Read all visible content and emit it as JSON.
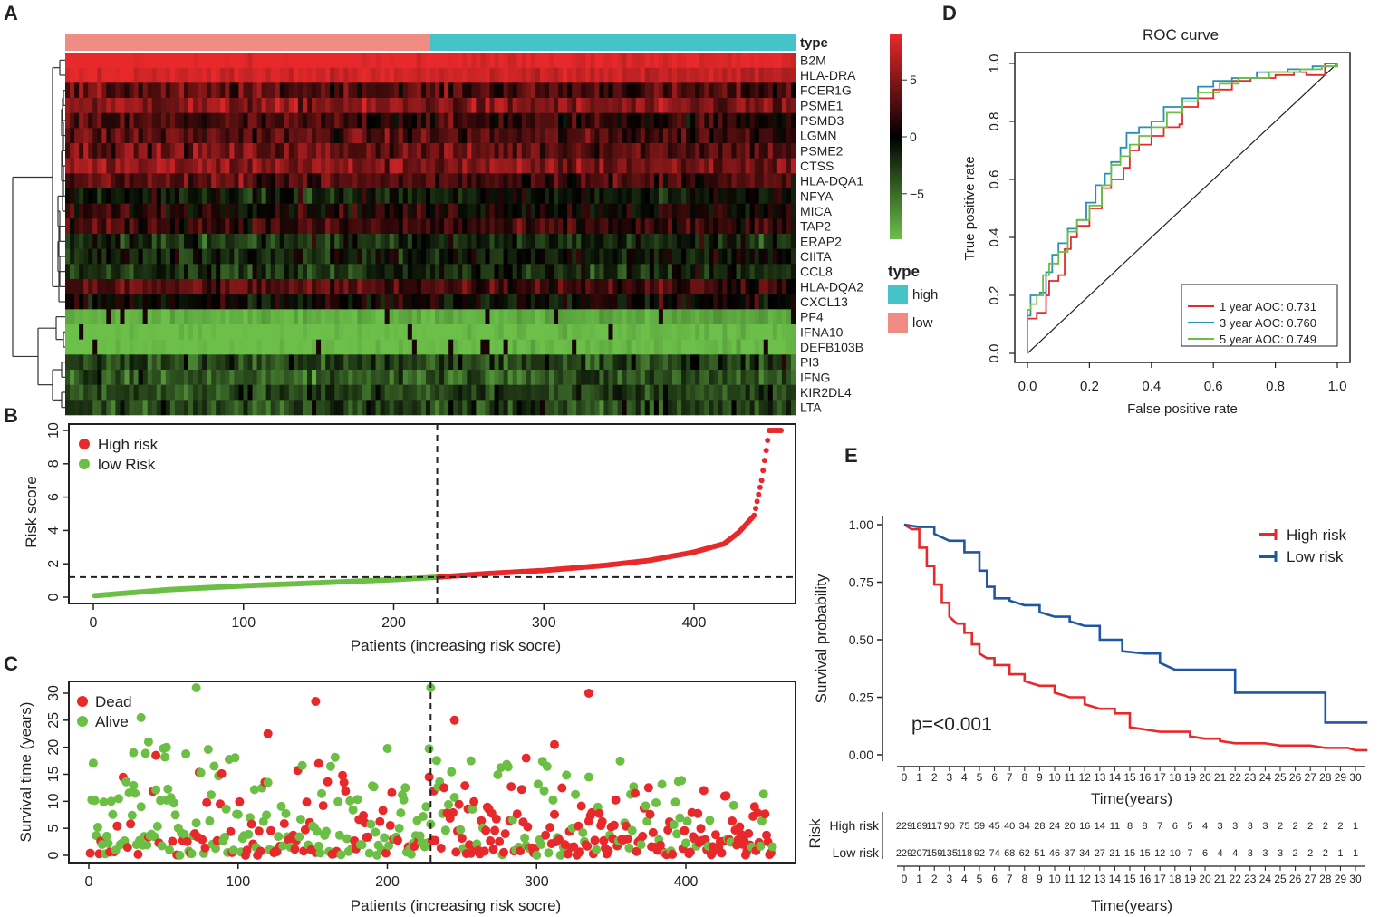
{
  "panel_labels": [
    "A",
    "B",
    "C",
    "D",
    "E"
  ],
  "colors": {
    "high": "#f08c84",
    "low": "#46c3c8",
    "red": "#e8292b",
    "green": "#6cbf45",
    "blue": "#1f56a4",
    "heat_high": "#e8292b",
    "heat_mid": "#000000",
    "heat_low": "#6cc04a"
  },
  "chart_data": [
    {
      "panel": "A",
      "type": "heatmap",
      "annotation_label": "type",
      "genes": [
        "B2M",
        "HLA-DRA",
        "FCER1G",
        "PSME1",
        "PSMD3",
        "LGMN",
        "PSME2",
        "CTSS",
        "HLA-DQA1",
        "NFYA",
        "MICA",
        "TAP2",
        "ERAP2",
        "CIITA",
        "CCL8",
        "HLA-DQA2",
        "CXCL13",
        "PF4",
        "IFNA10",
        "DEFB103B",
        "PI3",
        "IFNG",
        "KIR2DL4",
        "LTA"
      ],
      "gene_mean_level": [
        9,
        8,
        3,
        5,
        2,
        3,
        4,
        5,
        3,
        -1,
        1,
        2,
        -2,
        -1,
        -2,
        3,
        0,
        -8,
        -9,
        -9,
        -3,
        -4,
        -3,
        -3
      ],
      "groups": [
        {
          "name": "low",
          "count": 229
        },
        {
          "name": "high",
          "count": 229
        }
      ],
      "color_scale": {
        "ticks": [
          5,
          0,
          -5
        ],
        "range": [
          -9,
          9
        ]
      },
      "legend": {
        "title": "type",
        "items": [
          "high",
          "low"
        ]
      }
    },
    {
      "panel": "B",
      "type": "scatter",
      "xlabel": "Patients (increasing risk socre)",
      "ylabel": "Risk score",
      "xlim": [
        0,
        460
      ],
      "ylim": [
        0,
        10
      ],
      "xticks": [
        0,
        100,
        200,
        300,
        400
      ],
      "yticks": [
        0,
        2,
        4,
        6,
        8,
        10
      ],
      "n_patients": 458,
      "cutoff_patient": 229,
      "cutoff_score": 1.2,
      "risk_curve": [
        [
          0,
          0.08
        ],
        [
          50,
          0.45
        ],
        [
          100,
          0.68
        ],
        [
          150,
          0.86
        ],
        [
          200,
          1.05
        ],
        [
          229,
          1.2
        ],
        [
          260,
          1.4
        ],
        [
          300,
          1.6
        ],
        [
          340,
          1.9
        ],
        [
          370,
          2.2
        ],
        [
          400,
          2.7
        ],
        [
          420,
          3.2
        ],
        [
          430,
          3.9
        ],
        [
          440,
          4.9
        ],
        [
          445,
          7
        ],
        [
          450,
          10
        ],
        [
          458,
          10
        ]
      ],
      "legend": [
        "High risk",
        "low Risk"
      ]
    },
    {
      "panel": "C",
      "type": "scatter",
      "xlabel": "Patients (increasing risk socre)",
      "ylabel": "Survival time (years)",
      "xlim": [
        0,
        460
      ],
      "ylim": [
        0,
        31
      ],
      "xticks": [
        0,
        100,
        200,
        300,
        400
      ],
      "yticks": [
        0,
        5,
        10,
        15,
        20,
        25,
        30
      ],
      "cutoff_patient": 229,
      "legend": [
        "Dead",
        "Alive"
      ],
      "highlight_points": [
        {
          "x": 72,
          "y": 31,
          "status": "Alive"
        },
        {
          "x": 229,
          "y": 31,
          "status": "Alive"
        },
        {
          "x": 152,
          "y": 28.5,
          "status": "Dead"
        },
        {
          "x": 335,
          "y": 30,
          "status": "Dead"
        },
        {
          "x": 35,
          "y": 25.5,
          "status": "Alive"
        },
        {
          "x": 245,
          "y": 25,
          "status": "Dead"
        },
        {
          "x": 120,
          "y": 22.5,
          "status": "Dead"
        },
        {
          "x": 40,
          "y": 21,
          "status": "Alive"
        },
        {
          "x": 52,
          "y": 20,
          "status": "Alive"
        },
        {
          "x": 312,
          "y": 20.5,
          "status": "Dead"
        },
        {
          "x": 45,
          "y": 18.5,
          "status": "Dead"
        },
        {
          "x": 30,
          "y": 19,
          "status": "Alive"
        },
        {
          "x": 293,
          "y": 18,
          "status": "Dead"
        },
        {
          "x": 154,
          "y": 17,
          "status": "Dead"
        },
        {
          "x": 256,
          "y": 17.5,
          "status": "Alive"
        },
        {
          "x": 228,
          "y": 14.5,
          "status": "Dead"
        },
        {
          "x": 335,
          "y": 14.5,
          "status": "Alive"
        }
      ]
    },
    {
      "panel": "D",
      "type": "line",
      "title": "ROC curve",
      "xlabel": "False positive rate",
      "ylabel": "True positive rate",
      "xlim": [
        0,
        1
      ],
      "ylim": [
        0,
        1
      ],
      "xticks": [
        0.0,
        0.2,
        0.4,
        0.6,
        0.8,
        1.0
      ],
      "yticks": [
        0.0,
        0.2,
        0.4,
        0.6,
        0.8,
        1.0
      ],
      "tick_labels": [
        "0.0",
        "0.2",
        "0.4",
        "0.6",
        "0.8",
        "1.0"
      ],
      "series": [
        {
          "name": "1 year AOC: 0.731",
          "color": "#e8292b",
          "points": [
            [
              0,
              0
            ],
            [
              0,
              0.12
            ],
            [
              0.03,
              0.14
            ],
            [
              0.06,
              0.2
            ],
            [
              0.07,
              0.25
            ],
            [
              0.1,
              0.27
            ],
            [
              0.12,
              0.36
            ],
            [
              0.14,
              0.4
            ],
            [
              0.16,
              0.44
            ],
            [
              0.2,
              0.5
            ],
            [
              0.24,
              0.57
            ],
            [
              0.27,
              0.6
            ],
            [
              0.31,
              0.64
            ],
            [
              0.33,
              0.7
            ],
            [
              0.36,
              0.72
            ],
            [
              0.4,
              0.75
            ],
            [
              0.44,
              0.78
            ],
            [
              0.49,
              0.79
            ],
            [
              0.5,
              0.85
            ],
            [
              0.55,
              0.88
            ],
            [
              0.6,
              0.91
            ],
            [
              0.66,
              0.94
            ],
            [
              0.72,
              0.95
            ],
            [
              0.8,
              0.96
            ],
            [
              0.86,
              0.97
            ],
            [
              0.9,
              0.96
            ],
            [
              0.96,
              1
            ],
            [
              1,
              1
            ]
          ]
        },
        {
          "name": "3 year AOC: 0.760",
          "color": "#2a8fb6",
          "points": [
            [
              0,
              0
            ],
            [
              0,
              0.13
            ],
            [
              0.01,
              0.2
            ],
            [
              0.04,
              0.21
            ],
            [
              0.06,
              0.28
            ],
            [
              0.08,
              0.34
            ],
            [
              0.1,
              0.38
            ],
            [
              0.13,
              0.43
            ],
            [
              0.16,
              0.46
            ],
            [
              0.19,
              0.52
            ],
            [
              0.22,
              0.58
            ],
            [
              0.25,
              0.62
            ],
            [
              0.27,
              0.66
            ],
            [
              0.3,
              0.71
            ],
            [
              0.32,
              0.76
            ],
            [
              0.36,
              0.78
            ],
            [
              0.4,
              0.8
            ],
            [
              0.44,
              0.85
            ],
            [
              0.5,
              0.88
            ],
            [
              0.55,
              0.92
            ],
            [
              0.6,
              0.94
            ],
            [
              0.66,
              0.95
            ],
            [
              0.74,
              0.97
            ],
            [
              0.84,
              0.98
            ],
            [
              0.92,
              0.99
            ],
            [
              1,
              1
            ]
          ]
        },
        {
          "name": "5 year AOC: 0.749",
          "color": "#6cbf45",
          "points": [
            [
              0,
              0
            ],
            [
              0,
              0.15
            ],
            [
              0.01,
              0.17
            ],
            [
              0.03,
              0.2
            ],
            [
              0.05,
              0.27
            ],
            [
              0.07,
              0.31
            ],
            [
              0.1,
              0.35
            ],
            [
              0.13,
              0.42
            ],
            [
              0.16,
              0.46
            ],
            [
              0.2,
              0.51
            ],
            [
              0.24,
              0.58
            ],
            [
              0.27,
              0.65
            ],
            [
              0.3,
              0.68
            ],
            [
              0.33,
              0.72
            ],
            [
              0.36,
              0.75
            ],
            [
              0.4,
              0.78
            ],
            [
              0.45,
              0.83
            ],
            [
              0.5,
              0.87
            ],
            [
              0.55,
              0.9
            ],
            [
              0.62,
              0.93
            ],
            [
              0.68,
              0.95
            ],
            [
              0.78,
              0.97
            ],
            [
              0.88,
              0.98
            ],
            [
              0.95,
              0.99
            ],
            [
              1,
              1
            ]
          ]
        }
      ]
    },
    {
      "panel": "E",
      "type": "line",
      "xlabel": "Time(years)",
      "ylabel": "Survival probability",
      "xlim": [
        0,
        31
      ],
      "ylim": [
        0,
        1
      ],
      "yticks": [
        "0.00",
        "0.25",
        "0.50",
        "0.75",
        "1.00"
      ],
      "ytick_values": [
        0,
        0.25,
        0.5,
        0.75,
        1
      ],
      "xticks": [
        0,
        1,
        2,
        3,
        4,
        5,
        6,
        7,
        8,
        9,
        10,
        11,
        12,
        13,
        14,
        15,
        16,
        17,
        18,
        19,
        20,
        21,
        22,
        23,
        24,
        25,
        26,
        27,
        28,
        29,
        30
      ],
      "pvalue": "p=<0.001",
      "series": [
        {
          "name": "High risk",
          "color": "#e8292b",
          "points": [
            [
              0,
              1
            ],
            [
              0.5,
              0.98
            ],
            [
              1,
              0.9
            ],
            [
              1.5,
              0.82
            ],
            [
              2,
              0.74
            ],
            [
              2.5,
              0.66
            ],
            [
              3,
              0.6
            ],
            [
              3.5,
              0.57
            ],
            [
              4,
              0.53
            ],
            [
              4.5,
              0.48
            ],
            [
              5,
              0.44
            ],
            [
              5.5,
              0.42
            ],
            [
              6,
              0.39
            ],
            [
              7,
              0.35
            ],
            [
              8,
              0.32
            ],
            [
              9,
              0.3
            ],
            [
              10,
              0.27
            ],
            [
              11,
              0.25
            ],
            [
              12,
              0.22
            ],
            [
              13,
              0.2
            ],
            [
              14,
              0.18
            ],
            [
              14.5,
              0.18
            ],
            [
              15,
              0.12
            ],
            [
              17,
              0.1
            ],
            [
              19,
              0.08
            ],
            [
              20,
              0.07
            ],
            [
              21,
              0.06
            ],
            [
              22,
              0.05
            ],
            [
              24,
              0.05
            ],
            [
              25,
              0.04
            ],
            [
              27,
              0.04
            ],
            [
              28,
              0.03
            ],
            [
              29.5,
              0.03
            ],
            [
              30,
              0.02
            ],
            [
              30.8,
              0.02
            ]
          ]
        },
        {
          "name": "Low risk",
          "color": "#1f56a4",
          "points": [
            [
              0,
              1
            ],
            [
              1,
              0.99
            ],
            [
              2,
              0.96
            ],
            [
              3,
              0.93
            ],
            [
              4,
              0.88
            ],
            [
              5,
              0.8
            ],
            [
              5.5,
              0.73
            ],
            [
              6,
              0.68
            ],
            [
              7,
              0.67
            ],
            [
              8,
              0.65
            ],
            [
              9,
              0.62
            ],
            [
              10,
              0.6
            ],
            [
              11,
              0.58
            ],
            [
              12,
              0.56
            ],
            [
              13,
              0.5
            ],
            [
              14,
              0.5
            ],
            [
              14.5,
              0.45
            ],
            [
              16,
              0.44
            ],
            [
              17,
              0.4
            ],
            [
              18,
              0.37
            ],
            [
              20,
              0.37
            ],
            [
              21,
              0.37
            ],
            [
              22,
              0.27
            ],
            [
              25,
              0.27
            ],
            [
              27.5,
              0.27
            ],
            [
              28,
              0.14
            ],
            [
              30.8,
              0.14
            ]
          ]
        }
      ],
      "risk_table": {
        "title": "Risk",
        "rows": [
          {
            "label": "High risk",
            "values": [
              "229",
              "189",
              "117",
              "90",
              "75",
              "59",
              "45",
              "40",
              "34",
              "28",
              "24",
              "20",
              "16",
              "14",
              "11",
              "8",
              "8",
              "7",
              "6",
              "5",
              "4",
              "3",
              "3",
              "3",
              "3",
              "2",
              "2",
              "2",
              "2",
              "2",
              "1"
            ]
          },
          {
            "label": "Low risk",
            "values": [
              "229",
              "207",
              "159",
              "135",
              "118",
              "92",
              "74",
              "68",
              "62",
              "51",
              "46",
              "37",
              "34",
              "27",
              "21",
              "15",
              "15",
              "12",
              "10",
              "7",
              "6",
              "4",
              "4",
              "3",
              "3",
              "3",
              "2",
              "2",
              "2",
              "1",
              "1"
            ]
          }
        ]
      }
    }
  ]
}
